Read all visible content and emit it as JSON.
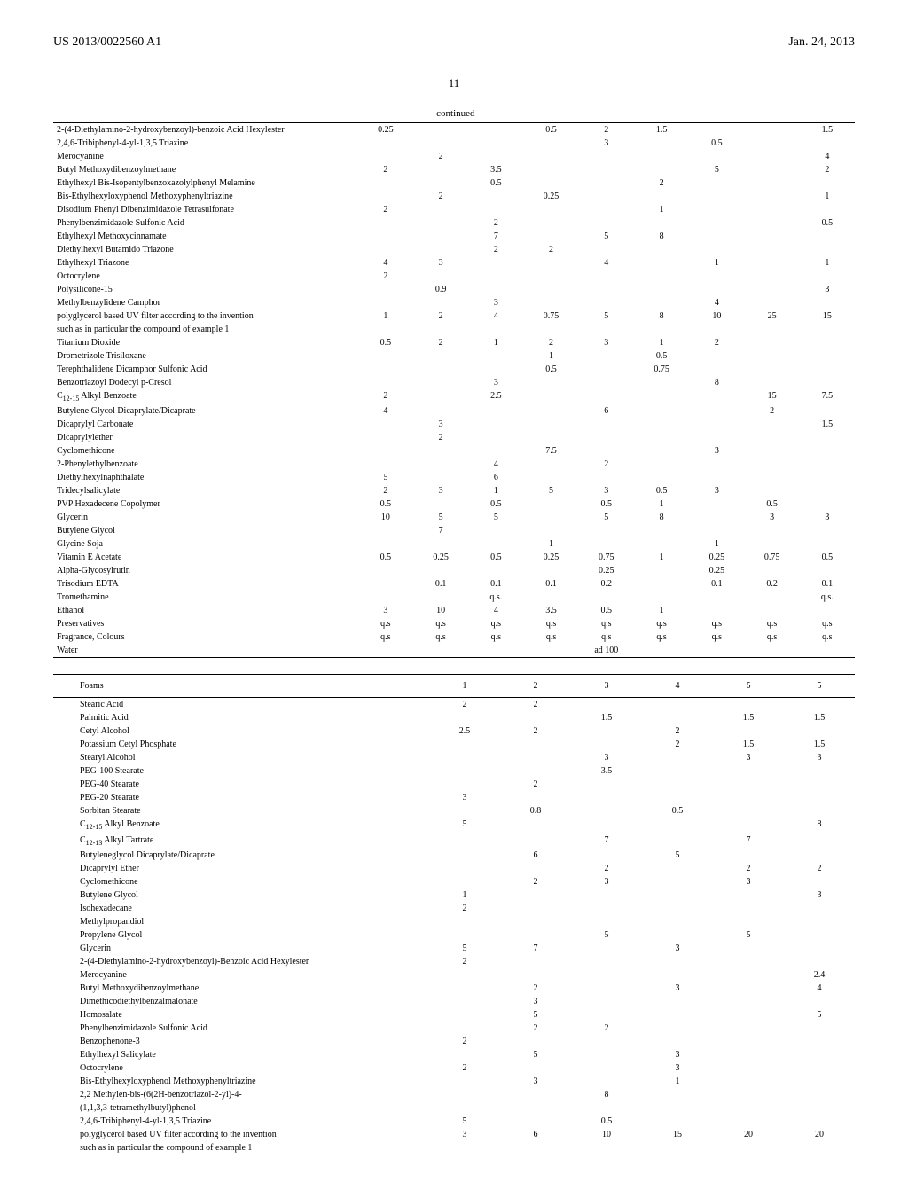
{
  "header": {
    "patent_number": "US 2013/0022560 A1",
    "date": "Jan. 24, 2013",
    "page": "11",
    "continued": "-continued"
  },
  "table1": {
    "rows": [
      {
        "label": "2-(4-Diethylamino-2-hydroxybenzoyl)-benzoic Acid Hexylester",
        "v": [
          "0.25",
          "",
          "",
          "0.5",
          "2",
          "1.5",
          "",
          "",
          "1.5"
        ]
      },
      {
        "label": "2,4,6-Tribiphenyl-4-yl-1,3,5 Triazine",
        "v": [
          "",
          "",
          "",
          "",
          "3",
          "",
          "0.5",
          "",
          ""
        ]
      },
      {
        "label": "Merocyanine",
        "v": [
          "",
          "2",
          "",
          "",
          "",
          "",
          "",
          "",
          "4"
        ]
      },
      {
        "label": "Butyl Methoxydibenzoylmethane",
        "v": [
          "2",
          "",
          "3.5",
          "",
          "",
          "",
          "5",
          "",
          "2"
        ]
      },
      {
        "label": "Ethylhexyl Bis-Isopentylbenzoxazolylphenyl Melamine",
        "v": [
          "",
          "",
          "0.5",
          "",
          "",
          "2",
          "",
          "",
          ""
        ]
      },
      {
        "label": "Bis-Ethylhexyloxyphenol Methoxyphenyltriazine",
        "v": [
          "",
          "2",
          "",
          "0.25",
          "",
          "",
          "",
          "",
          "1"
        ]
      },
      {
        "label": "Disodium Phenyl Dibenzimidazole Tetrasulfonate",
        "v": [
          "2",
          "",
          "",
          "",
          "",
          "1",
          "",
          "",
          ""
        ]
      },
      {
        "label": "Phenylbenzimidazole Sulfonic Acid",
        "v": [
          "",
          "",
          "2",
          "",
          "",
          "",
          "",
          "",
          "0.5"
        ]
      },
      {
        "label": "Ethylhexyl Methoxycinnamate",
        "v": [
          "",
          "",
          "7",
          "",
          "5",
          "8",
          "",
          "",
          ""
        ]
      },
      {
        "label": "Diethylhexyl Butamido Triazone",
        "v": [
          "",
          "",
          "2",
          "2",
          "",
          "",
          "",
          "",
          ""
        ]
      },
      {
        "label": "Ethylhexyl Triazone",
        "v": [
          "4",
          "3",
          "",
          "",
          "4",
          "",
          "1",
          "",
          "1"
        ]
      },
      {
        "label": "Octocrylene",
        "v": [
          "2",
          "",
          "",
          "",
          "",
          "",
          "",
          "",
          ""
        ]
      },
      {
        "label": "Polysilicone-15",
        "v": [
          "",
          "0.9",
          "",
          "",
          "",
          "",
          "",
          "",
          "3"
        ]
      },
      {
        "label": "Methylbenzylidene Camphor",
        "v": [
          "",
          "",
          "3",
          "",
          "",
          "",
          "4",
          "",
          ""
        ]
      },
      {
        "label": "polyglycerol based UV filter according to the invention",
        "v": [
          "1",
          "2",
          "4",
          "0.75",
          "5",
          "8",
          "10",
          "25",
          "15"
        ]
      },
      {
        "label": "such as in particular the compound of example 1",
        "v": [
          "",
          "",
          "",
          "",
          "",
          "",
          "",
          "",
          ""
        ]
      },
      {
        "label": "Titanium Dioxide",
        "v": [
          "0.5",
          "2",
          "1",
          "2",
          "3",
          "1",
          "2",
          "",
          ""
        ]
      },
      {
        "label": "Drometrizole Trisiloxane",
        "v": [
          "",
          "",
          "",
          "1",
          "",
          "0.5",
          "",
          "",
          ""
        ]
      },
      {
        "label": "Terephthalidene Dicamphor Sulfonic Acid",
        "v": [
          "",
          "",
          "",
          "0.5",
          "",
          "0.75",
          "",
          "",
          ""
        ]
      },
      {
        "label": "Benzotriazoyl Dodecyl p-Cresol",
        "v": [
          "",
          "",
          "3",
          "",
          "",
          "",
          "8",
          "",
          ""
        ]
      },
      {
        "label": "C₁₂₋₁₅ Alkyl Benzoate",
        "v": [
          "2",
          "",
          "2.5",
          "",
          "",
          "",
          "",
          "15",
          "7.5"
        ]
      },
      {
        "label": "Butylene Glycol Dicaprylate/Dicaprate",
        "v": [
          "4",
          "",
          "",
          "",
          "6",
          "",
          "",
          "2",
          ""
        ]
      },
      {
        "label": "Dicaprylyl Carbonate",
        "v": [
          "",
          "3",
          "",
          "",
          "",
          "",
          "",
          "",
          "1.5"
        ]
      },
      {
        "label": "Dicaprylylether",
        "v": [
          "",
          "2",
          "",
          "",
          "",
          "",
          "",
          "",
          ""
        ]
      },
      {
        "label": "Cyclomethicone",
        "v": [
          "",
          "",
          "",
          "7.5",
          "",
          "",
          "3",
          "",
          ""
        ]
      },
      {
        "label": "2-Phenylethylbenzoate",
        "v": [
          "",
          "",
          "4",
          "",
          "2",
          "",
          "",
          "",
          ""
        ]
      },
      {
        "label": "Diethylhexylnaphthalate",
        "v": [
          "5",
          "",
          "6",
          "",
          "",
          "",
          "",
          "",
          ""
        ]
      },
      {
        "label": "Tridecylsalicylate",
        "v": [
          "2",
          "3",
          "1",
          "5",
          "3",
          "0.5",
          "3",
          "",
          ""
        ]
      },
      {
        "label": "PVP Hexadecene Copolymer",
        "v": [
          "0.5",
          "",
          "0.5",
          "",
          "0.5",
          "1",
          "",
          "0.5",
          ""
        ]
      },
      {
        "label": "Glycerin",
        "v": [
          "10",
          "5",
          "5",
          "",
          "5",
          "8",
          "",
          "3",
          "3"
        ]
      },
      {
        "label": "Butylene Glycol",
        "v": [
          "",
          "7",
          "",
          "",
          "",
          "",
          "",
          "",
          ""
        ]
      },
      {
        "label": "Glycine Soja",
        "v": [
          "",
          "",
          "",
          "1",
          "",
          "",
          "1",
          "",
          ""
        ]
      },
      {
        "label": "Vitamin E Acetate",
        "v": [
          "0.5",
          "0.25",
          "0.5",
          "0.25",
          "0.75",
          "1",
          "0.25",
          "0.75",
          "0.5"
        ]
      },
      {
        "label": "Alpha-Glycosylrutin",
        "v": [
          "",
          "",
          "",
          "",
          "0.25",
          "",
          "0.25",
          "",
          ""
        ]
      },
      {
        "label": "Trisodium EDTA",
        "v": [
          "",
          "0.1",
          "0.1",
          "0.1",
          "0.2",
          "",
          "0.1",
          "0.2",
          "0.1"
        ]
      },
      {
        "label": "Tromethamine",
        "v": [
          "",
          "",
          "q.s.",
          "",
          "",
          "",
          "",
          "",
          "q.s."
        ]
      },
      {
        "label": "Ethanol",
        "v": [
          "3",
          "10",
          "4",
          "3.5",
          "0.5",
          "1",
          "",
          "",
          ""
        ]
      },
      {
        "label": "Preservatives",
        "v": [
          "q.s",
          "q.s",
          "q.s",
          "q.s",
          "q.s",
          "q.s",
          "q.s",
          "q.s",
          "q.s"
        ]
      },
      {
        "label": "Fragrance, Colours",
        "v": [
          "q.s",
          "q.s",
          "q.s",
          "q.s",
          "q.s",
          "q.s",
          "q.s",
          "q.s",
          "q.s"
        ]
      },
      {
        "label": "Water",
        "v": [
          "",
          "",
          "",
          "",
          "ad 100",
          "",
          "",
          "",
          ""
        ]
      }
    ]
  },
  "table2": {
    "header_label": "Foams",
    "cols": [
      "1",
      "2",
      "3",
      "4",
      "5",
      "5"
    ],
    "rows": [
      {
        "label": "Stearic Acid",
        "v": [
          "2",
          "2",
          "",
          "",
          "",
          ""
        ]
      },
      {
        "label": "Palmitic Acid",
        "v": [
          "",
          "",
          "1.5",
          "",
          "1.5",
          "1.5"
        ]
      },
      {
        "label": "Cetyl Alcohol",
        "v": [
          "2.5",
          "2",
          "",
          "2",
          "",
          ""
        ]
      },
      {
        "label": "Potassium Cetyl Phosphate",
        "v": [
          "",
          "",
          "",
          "2",
          "1.5",
          "1.5"
        ]
      },
      {
        "label": "Stearyl Alcohol",
        "v": [
          "",
          "",
          "3",
          "",
          "3",
          "3"
        ]
      },
      {
        "label": "PEG-100 Stearate",
        "v": [
          "",
          "",
          "3.5",
          "",
          "",
          ""
        ]
      },
      {
        "label": "PEG-40 Stearate",
        "v": [
          "",
          "2",
          "",
          "",
          "",
          ""
        ]
      },
      {
        "label": "PEG-20 Stearate",
        "v": [
          "3",
          "",
          "",
          "",
          "",
          ""
        ]
      },
      {
        "label": "Sorbitan Stearate",
        "v": [
          "",
          "0.8",
          "",
          "0.5",
          "",
          ""
        ]
      },
      {
        "label": "C₁₂₋₁₅ Alkyl Benzoate",
        "v": [
          "5",
          "",
          "",
          "",
          "",
          "8"
        ]
      },
      {
        "label": "C₁₂₋₁₃ Alkyl Tartrate",
        "v": [
          "",
          "",
          "7",
          "",
          "7",
          ""
        ]
      },
      {
        "label": "Butyleneglycol Dicaprylate/Dicaprate",
        "v": [
          "",
          "6",
          "",
          "5",
          "",
          ""
        ]
      },
      {
        "label": "Dicaprylyl Ether",
        "v": [
          "",
          "",
          "2",
          "",
          "2",
          "2"
        ]
      },
      {
        "label": "Cyclomethicone",
        "v": [
          "",
          "2",
          "3",
          "",
          "3",
          ""
        ]
      },
      {
        "label": "Butylene Glycol",
        "v": [
          "1",
          "",
          "",
          "",
          "",
          "3"
        ]
      },
      {
        "label": "Isohexadecane",
        "v": [
          "2",
          "",
          "",
          "",
          "",
          ""
        ]
      },
      {
        "label": "Methylpropandiol",
        "v": [
          "",
          "",
          "",
          "",
          "",
          ""
        ]
      },
      {
        "label": "Propylene Glycol",
        "v": [
          "",
          "",
          "5",
          "",
          "5",
          ""
        ]
      },
      {
        "label": "Glycerin",
        "v": [
          "5",
          "7",
          "",
          "3",
          "",
          ""
        ]
      },
      {
        "label": "2-(4-Diethylamino-2-hydroxybenzoyl)-Benzoic Acid Hexylester",
        "v": [
          "2",
          "",
          "",
          "",
          "",
          ""
        ]
      },
      {
        "label": "Merocyanine",
        "v": [
          "",
          "",
          "",
          "",
          "",
          "2.4"
        ]
      },
      {
        "label": "Butyl Methoxydibenzoylmethane",
        "v": [
          "",
          "2",
          "",
          "3",
          "",
          "4"
        ]
      },
      {
        "label": "Dimethicodiethylbenzalmalonate",
        "v": [
          "",
          "3",
          "",
          "",
          "",
          ""
        ]
      },
      {
        "label": "Homosalate",
        "v": [
          "",
          "5",
          "",
          "",
          "",
          "5"
        ]
      },
      {
        "label": "Phenylbenzimidazole Sulfonic Acid",
        "v": [
          "",
          "2",
          "2",
          "",
          "",
          ""
        ]
      },
      {
        "label": "Benzophenone-3",
        "v": [
          "2",
          "",
          "",
          "",
          "",
          ""
        ]
      },
      {
        "label": "Ethylhexyl Salicylate",
        "v": [
          "",
          "5",
          "",
          "3",
          "",
          ""
        ]
      },
      {
        "label": "Octocrylene",
        "v": [
          "2",
          "",
          "",
          "3",
          "",
          ""
        ]
      },
      {
        "label": "Bis-Ethylhexyloxyphenol Methoxyphenyltriazine",
        "v": [
          "",
          "3",
          "",
          "1",
          "",
          ""
        ]
      },
      {
        "label": "2,2 Methylen-bis-(6(2H-benzotriazol-2-yl)-4-",
        "v": [
          "",
          "",
          "8",
          "",
          "",
          ""
        ]
      },
      {
        "label": "(1,1,3,3-tetramethylbutyl)phenol",
        "v": [
          "",
          "",
          "",
          "",
          "",
          ""
        ]
      },
      {
        "label": "2,4,6-Tribiphenyl-4-yl-1,3,5 Triazine",
        "v": [
          "5",
          "",
          "0.5",
          "",
          "",
          ""
        ]
      },
      {
        "label": "polyglycerol based UV filter according to the invention",
        "v": [
          "3",
          "6",
          "10",
          "15",
          "20",
          "20"
        ]
      },
      {
        "label": "such as in particular the compound of example 1",
        "v": [
          "",
          "",
          "",
          "",
          "",
          ""
        ]
      }
    ]
  }
}
